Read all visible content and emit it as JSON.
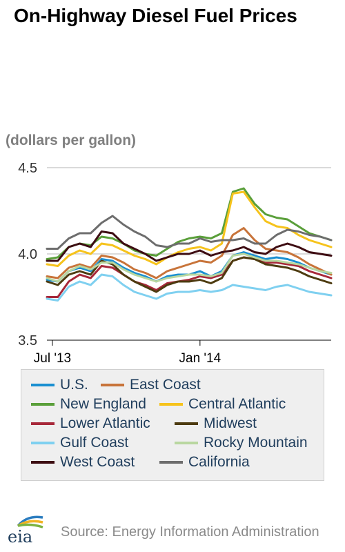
{
  "header": {
    "title": "On-Highway Diesel Fuel Prices"
  },
  "source": {
    "text": "Source: Energy Information Administration"
  },
  "logo": {
    "text": "eia",
    "icon": "eia-logo-icon"
  },
  "chart_data": {
    "type": "line",
    "title": "On-Highway Diesel Fuel Prices",
    "ylabel": "(dollars per gallon)",
    "xlabel": "",
    "ylim": [
      3.5,
      4.5
    ],
    "xlim": [
      "2013-06-24",
      "2014-06-23"
    ],
    "y_ticks": [
      "3.5",
      "4.0",
      "4.5"
    ],
    "x_ticks": [
      {
        "label": "Jul '13",
        "date": "2013-07-01"
      },
      {
        "label": "Jan '14",
        "date": "2014-01-06"
      }
    ],
    "grid": true,
    "legend_placement": "bottom",
    "x": [
      "2013-06-24",
      "2013-07-08",
      "2013-07-22",
      "2013-08-05",
      "2013-08-19",
      "2013-09-02",
      "2013-09-16",
      "2013-09-30",
      "2013-10-14",
      "2013-10-28",
      "2013-11-11",
      "2013-11-25",
      "2013-12-09",
      "2013-12-23",
      "2014-01-06",
      "2014-01-20",
      "2014-02-03",
      "2014-02-17",
      "2014-03-03",
      "2014-03-17",
      "2014-03-31",
      "2014-04-14",
      "2014-04-28",
      "2014-05-12",
      "2014-05-26",
      "2014-06-09",
      "2014-06-23"
    ],
    "series": [
      {
        "name": "U.S.",
        "color": "#1a8fd1",
        "values": [
          3.85,
          3.84,
          3.9,
          3.92,
          3.9,
          3.97,
          3.96,
          3.92,
          3.89,
          3.87,
          3.84,
          3.87,
          3.88,
          3.88,
          3.9,
          3.87,
          3.9,
          3.99,
          4.01,
          3.99,
          3.97,
          3.98,
          3.97,
          3.95,
          3.92,
          3.9,
          3.88
        ]
      },
      {
        "name": "East Coast",
        "color": "#c8743a",
        "values": [
          3.87,
          3.86,
          3.92,
          3.94,
          3.92,
          3.99,
          3.98,
          3.95,
          3.91,
          3.89,
          3.86,
          3.9,
          3.92,
          3.94,
          3.96,
          3.95,
          3.99,
          4.11,
          4.15,
          4.08,
          4.03,
          4.02,
          4.01,
          3.98,
          3.94,
          3.91,
          3.88
        ]
      },
      {
        "name": "New England",
        "color": "#5a9f3a",
        "values": [
          3.97,
          3.98,
          4.04,
          4.06,
          4.05,
          4.1,
          4.09,
          4.06,
          4.02,
          4.0,
          3.99,
          4.03,
          4.07,
          4.09,
          4.1,
          4.09,
          4.12,
          4.36,
          4.38,
          4.29,
          4.23,
          4.21,
          4.2,
          4.16,
          4.12,
          4.1,
          4.08
        ]
      },
      {
        "name": "Central Atlantic",
        "color": "#f6c31c",
        "values": [
          3.94,
          3.93,
          3.99,
          4.02,
          4.0,
          4.06,
          4.05,
          4.02,
          3.99,
          3.97,
          3.94,
          3.98,
          4.01,
          4.03,
          4.04,
          4.02,
          4.06,
          4.35,
          4.36,
          4.27,
          4.19,
          4.16,
          4.15,
          4.11,
          4.08,
          4.06,
          4.04
        ]
      },
      {
        "name": "Lower Atlantic",
        "color": "#a7283a",
        "values": [
          3.75,
          3.75,
          3.84,
          3.88,
          3.86,
          3.93,
          3.92,
          3.88,
          3.84,
          3.82,
          3.79,
          3.83,
          3.84,
          3.85,
          3.87,
          3.86,
          3.88,
          3.96,
          3.98,
          3.97,
          3.95,
          3.95,
          3.94,
          3.93,
          3.9,
          3.88,
          3.86
        ]
      },
      {
        "name": "Midwest",
        "color": "#4d3b10",
        "values": [
          3.84,
          3.82,
          3.88,
          3.9,
          3.88,
          3.96,
          3.94,
          3.88,
          3.84,
          3.81,
          3.78,
          3.82,
          3.84,
          3.84,
          3.85,
          3.83,
          3.86,
          3.96,
          3.98,
          3.97,
          3.94,
          3.93,
          3.92,
          3.9,
          3.87,
          3.85,
          3.83
        ]
      },
      {
        "name": "Gulf Coast",
        "color": "#7fd0f0",
        "values": [
          3.74,
          3.73,
          3.81,
          3.84,
          3.82,
          3.88,
          3.87,
          3.82,
          3.78,
          3.76,
          3.74,
          3.77,
          3.78,
          3.78,
          3.79,
          3.78,
          3.79,
          3.82,
          3.81,
          3.8,
          3.79,
          3.81,
          3.82,
          3.8,
          3.78,
          3.77,
          3.76
        ]
      },
      {
        "name": "Rocky Mountain",
        "color": "#b9d7a0",
        "values": [
          3.86,
          3.84,
          3.9,
          3.93,
          3.91,
          3.95,
          3.95,
          3.91,
          3.88,
          3.86,
          3.84,
          3.86,
          3.87,
          3.88,
          3.88,
          3.87,
          3.89,
          3.99,
          4.0,
          3.98,
          3.96,
          3.96,
          3.95,
          3.94,
          3.92,
          3.9,
          3.89
        ]
      },
      {
        "name": "West Coast",
        "color": "#3d0c12",
        "values": [
          3.96,
          3.96,
          4.04,
          4.06,
          4.04,
          4.13,
          4.12,
          4.06,
          4.03,
          4.0,
          3.96,
          3.98,
          4.0,
          4.0,
          4.02,
          3.99,
          4.01,
          4.02,
          4.04,
          4.01,
          4.0,
          4.04,
          4.06,
          4.04,
          4.01,
          4.0,
          3.99
        ]
      },
      {
        "name": "California",
        "color": "#6d6d6d",
        "values": [
          4.03,
          4.03,
          4.09,
          4.12,
          4.12,
          4.18,
          4.22,
          4.17,
          4.13,
          4.1,
          4.05,
          4.04,
          4.06,
          4.06,
          4.09,
          4.07,
          4.08,
          4.08,
          4.09,
          4.06,
          4.06,
          4.11,
          4.14,
          4.13,
          4.11,
          4.1,
          4.08
        ]
      }
    ]
  }
}
